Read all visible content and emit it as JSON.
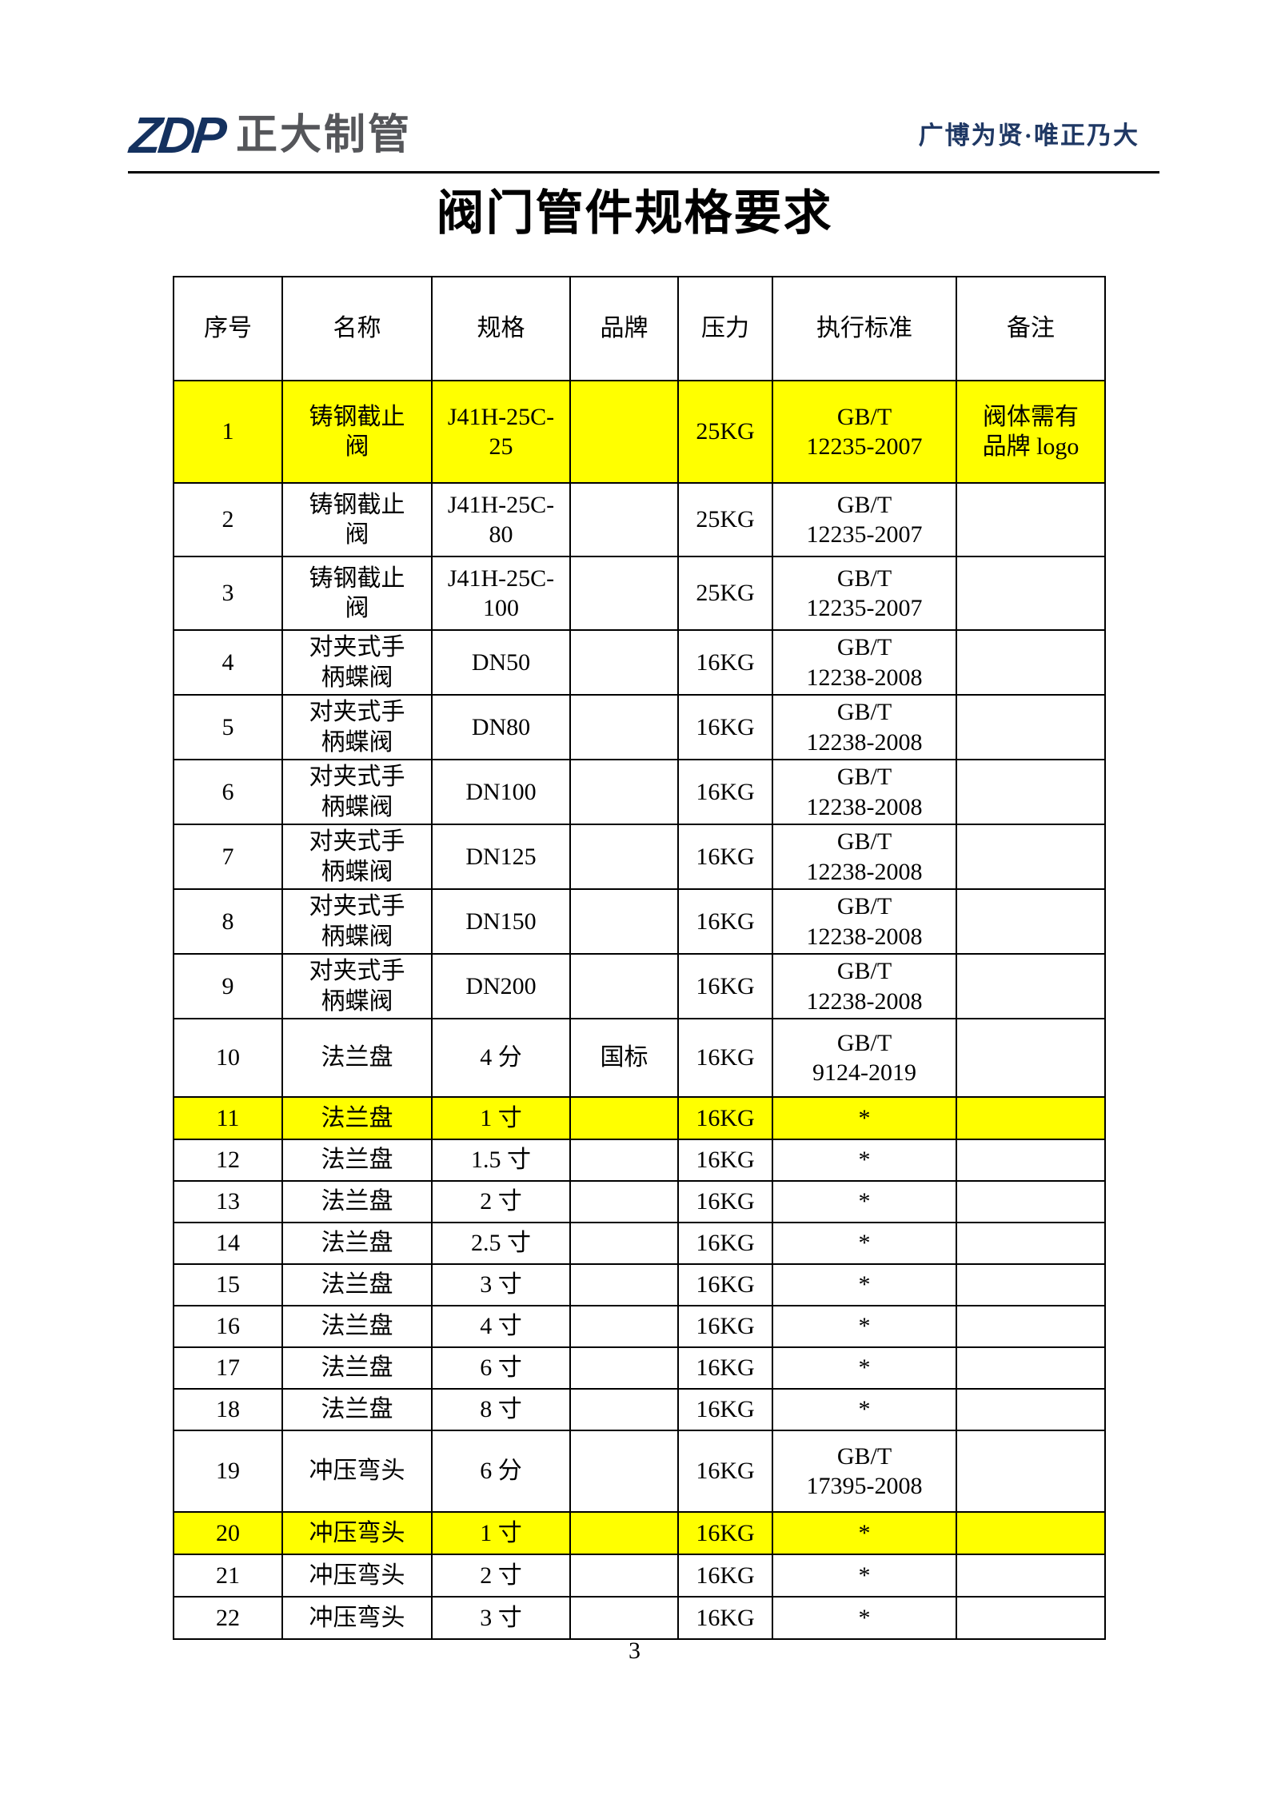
{
  "header": {
    "logo_zdp": "ZDP",
    "logo_company": "正大制管",
    "tagline": "广博为贤·唯正乃大"
  },
  "title": "阀门管件规格要求",
  "table": {
    "columns": [
      "序号",
      "名称",
      "规格",
      "品牌",
      "压力",
      "执行标准",
      "备注"
    ],
    "rows": [
      {
        "no": "1",
        "name": "铸钢截止\n阀",
        "spec": "J41H-25C-\n25",
        "brand": "",
        "pressure": "25KG",
        "standard": "GB/T\n12235-2007",
        "note": "阀体需有\n品牌 logo",
        "highlight": true
      },
      {
        "no": "2",
        "name": "铸钢截止\n阀",
        "spec": "J41H-25C-\n80",
        "brand": "",
        "pressure": "25KG",
        "standard": "GB/T\n12235-2007",
        "note": "",
        "highlight": false
      },
      {
        "no": "3",
        "name": "铸钢截止\n阀",
        "spec": "J41H-25C-\n100",
        "brand": "",
        "pressure": "25KG",
        "standard": "GB/T\n12235-2007",
        "note": "",
        "highlight": false
      },
      {
        "no": "4",
        "name": "对夹式手\n柄蝶阀",
        "spec": "DN50",
        "brand": "",
        "pressure": "16KG",
        "standard": "GB/T\n12238-2008",
        "note": "",
        "highlight": false
      },
      {
        "no": "5",
        "name": "对夹式手\n柄蝶阀",
        "spec": "DN80",
        "brand": "",
        "pressure": "16KG",
        "standard": "GB/T\n12238-2008",
        "note": "",
        "highlight": false
      },
      {
        "no": "6",
        "name": "对夹式手\n柄蝶阀",
        "spec": "DN100",
        "brand": "",
        "pressure": "16KG",
        "standard": "GB/T\n12238-2008",
        "note": "",
        "highlight": false
      },
      {
        "no": "7",
        "name": "对夹式手\n柄蝶阀",
        "spec": "DN125",
        "brand": "",
        "pressure": "16KG",
        "standard": "GB/T\n12238-2008",
        "note": "",
        "highlight": false
      },
      {
        "no": "8",
        "name": "对夹式手\n柄蝶阀",
        "spec": "DN150",
        "brand": "",
        "pressure": "16KG",
        "standard": "GB/T\n12238-2008",
        "note": "",
        "highlight": false
      },
      {
        "no": "9",
        "name": "对夹式手\n柄蝶阀",
        "spec": "DN200",
        "brand": "",
        "pressure": "16KG",
        "standard": "GB/T\n12238-2008",
        "note": "",
        "highlight": false
      },
      {
        "no": "10",
        "name": "法兰盘",
        "spec": "4 分",
        "brand": "国标",
        "pressure": "16KG",
        "standard": "GB/T\n9124-2019",
        "note": "",
        "highlight": false
      },
      {
        "no": "11",
        "name": "法兰盘",
        "spec": "1 寸",
        "brand": "",
        "pressure": "16KG",
        "standard": "*",
        "note": "",
        "highlight": true
      },
      {
        "no": "12",
        "name": "法兰盘",
        "spec": "1.5 寸",
        "brand": "",
        "pressure": "16KG",
        "standard": "*",
        "note": "",
        "highlight": false
      },
      {
        "no": "13",
        "name": "法兰盘",
        "spec": "2 寸",
        "brand": "",
        "pressure": "16KG",
        "standard": "*",
        "note": "",
        "highlight": false
      },
      {
        "no": "14",
        "name": "法兰盘",
        "spec": "2.5 寸",
        "brand": "",
        "pressure": "16KG",
        "standard": "*",
        "note": "",
        "highlight": false
      },
      {
        "no": "15",
        "name": "法兰盘",
        "spec": "3 寸",
        "brand": "",
        "pressure": "16KG",
        "standard": "*",
        "note": "",
        "highlight": false
      },
      {
        "no": "16",
        "name": "法兰盘",
        "spec": "4 寸",
        "brand": "",
        "pressure": "16KG",
        "standard": "*",
        "note": "",
        "highlight": false
      },
      {
        "no": "17",
        "name": "法兰盘",
        "spec": "6 寸",
        "brand": "",
        "pressure": "16KG",
        "standard": "*",
        "note": "",
        "highlight": false
      },
      {
        "no": "18",
        "name": "法兰盘",
        "spec": "8 寸",
        "brand": "",
        "pressure": "16KG",
        "standard": "*",
        "note": "",
        "highlight": false
      },
      {
        "no": "19",
        "name": "冲压弯头",
        "spec": "6 分",
        "brand": "",
        "pressure": "16KG",
        "standard": "GB/T\n17395-2008",
        "note": "",
        "highlight": false
      },
      {
        "no": "20",
        "name": "冲压弯头",
        "spec": "1 寸",
        "brand": "",
        "pressure": "16KG",
        "standard": "*",
        "note": "",
        "highlight": true
      },
      {
        "no": "21",
        "name": "冲压弯头",
        "spec": "2 寸",
        "brand": "",
        "pressure": "16KG",
        "standard": "*",
        "note": "",
        "highlight": false
      },
      {
        "no": "22",
        "name": "冲压弯头",
        "spec": "3 寸",
        "brand": "",
        "pressure": "16KG",
        "standard": "*",
        "note": "",
        "highlight": false
      }
    ]
  },
  "footer": {
    "page_number": "3"
  },
  "colors": {
    "highlight_yellow": "#FFFF00",
    "logo_navy": "#14315F",
    "logo_gray": "#55565A",
    "tagline_blue": "#1F3864",
    "border_black": "#000000"
  }
}
